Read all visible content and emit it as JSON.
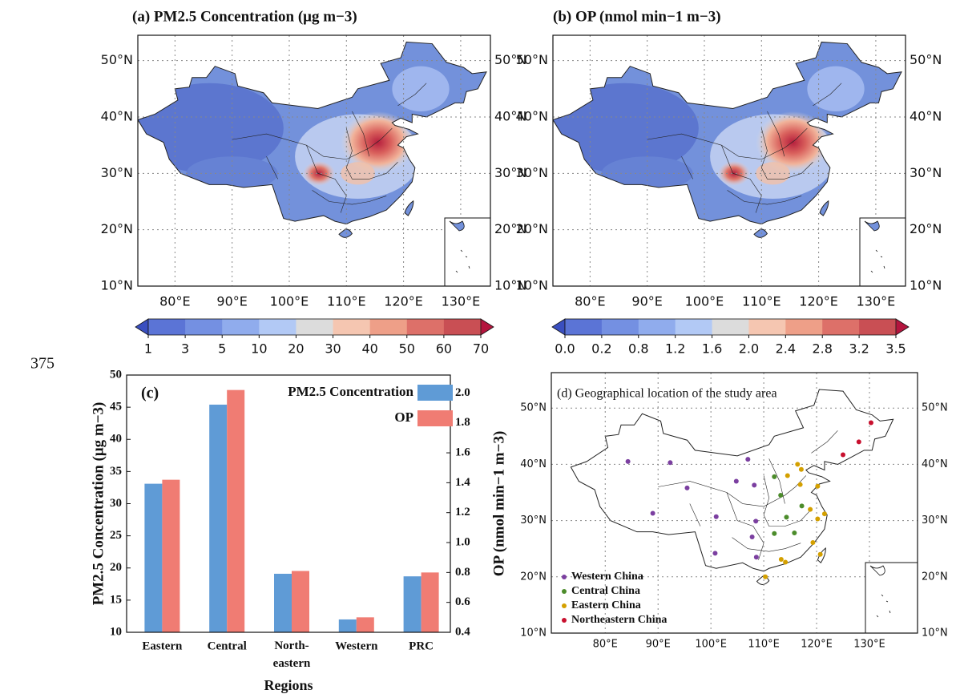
{
  "page_number": "375",
  "chart_data": [
    {
      "type": "map",
      "title": "(a) PM2.5 Concentration (μg m−3)",
      "xlim": [
        73.5,
        135.2
      ],
      "ylim": [
        10,
        54.5
      ],
      "xticks": [
        {
          "value": 80,
          "label": "80°E"
        },
        {
          "value": 90,
          "label": "90°E"
        },
        {
          "value": 100,
          "label": "100°E"
        },
        {
          "value": 110,
          "label": "110°E"
        },
        {
          "value": 120,
          "label": "120°E"
        },
        {
          "value": 130,
          "label": "130°E"
        }
      ],
      "yticks": [
        {
          "value": 10,
          "label": "10°N"
        },
        {
          "value": 20,
          "label": "20°N"
        },
        {
          "value": 30,
          "label": "30°N"
        },
        {
          "value": 40,
          "label": "40°N"
        },
        {
          "value": 50,
          "label": "50°N"
        }
      ],
      "grid": true,
      "colorbar": {
        "ticks": [
          1,
          3,
          5,
          10,
          20,
          30,
          40,
          50,
          60,
          70
        ],
        "colors": [
          "#5b74d6",
          "#7490e2",
          "#90aced",
          "#b2c9f5",
          "#dcdcdc",
          "#f5c6b1",
          "#ee9f88",
          "#dd7069",
          "#c94f54"
        ],
        "extend_colors": [
          "#3a4fc0",
          "#b4153e"
        ]
      }
    },
    {
      "type": "map",
      "title": "(b) OP (nmol min−1 m−3)",
      "xlim": [
        73.5,
        135.2
      ],
      "ylim": [
        10,
        54.5
      ],
      "xticks": [
        {
          "value": 80,
          "label": "80°E"
        },
        {
          "value": 90,
          "label": "90°E"
        },
        {
          "value": 100,
          "label": "100°E"
        },
        {
          "value": 110,
          "label": "110°E"
        },
        {
          "value": 120,
          "label": "120°E"
        },
        {
          "value": 130,
          "label": "130°E"
        }
      ],
      "yticks": [
        {
          "value": 10,
          "label": "10°N"
        },
        {
          "value": 20,
          "label": "20°N"
        },
        {
          "value": 30,
          "label": "30°N"
        },
        {
          "value": 40,
          "label": "40°N"
        },
        {
          "value": 50,
          "label": "50°N"
        }
      ],
      "grid": true,
      "colorbar": {
        "ticks": [
          {
            "value": 0,
            "label": "0.0"
          },
          0.2,
          0.8,
          1.2,
          1.6,
          {
            "value": 2,
            "label": "2.0"
          },
          2.4,
          2.8,
          3.2,
          3.5
        ],
        "colors": [
          "#5b74d6",
          "#7490e2",
          "#90aced",
          "#b2c9f5",
          "#dcdcdc",
          "#f5c6b1",
          "#ee9f88",
          "#dd7069",
          "#c94f54"
        ],
        "extend_colors": [
          "#3a4fc0",
          "#b4153e"
        ]
      }
    },
    {
      "type": "bar",
      "title": "(c)",
      "categories": [
        "Eastern",
        "Central",
        "North-eastern",
        "Western",
        "PRC"
      ],
      "series": [
        {
          "name": "PM2.5 Concentration",
          "color": "#5f9bd6",
          "values": [
            33.1,
            45.4,
            19.1,
            12.0,
            18.7
          ]
        },
        {
          "name": "OP",
          "color": "#f07c73",
          "axis": "y2",
          "values": [
            1.42,
            2.02,
            0.81,
            0.5,
            0.8
          ]
        }
      ],
      "xlabel": "Regions",
      "ylabel": "PM2.5 Concentration (μg m−3)",
      "y2label": "OP (nmol min−1 m−3)",
      "ylim": [
        10,
        50
      ],
      "yticks": [
        10,
        15,
        20,
        25,
        30,
        35,
        40,
        45,
        50
      ],
      "y2lim": [
        0.4,
        2.12
      ],
      "y2ticks": [
        0.4,
        0.6,
        0.8,
        {
          "value": 1,
          "label": "1.0"
        },
        1.2,
        1.4,
        1.6,
        1.8,
        {
          "value": 2,
          "label": "2.0"
        }
      ]
    },
    {
      "type": "map",
      "title": "(d) Geographical location of the study area",
      "xlim": [
        69.8,
        139.1
      ],
      "ylim": [
        10,
        56.3
      ],
      "xticks": [
        {
          "value": 80,
          "label": "80°E"
        },
        {
          "value": 90,
          "label": "90°E"
        },
        {
          "value": 100,
          "label": "100°E"
        },
        {
          "value": 110,
          "label": "110°E"
        },
        {
          "value": 120,
          "label": "120°E"
        },
        {
          "value": 130,
          "label": "130°E"
        }
      ],
      "yticks": [
        {
          "value": 10,
          "label": "10°N"
        },
        {
          "value": 20,
          "label": "20°N"
        },
        {
          "value": 30,
          "label": "30°N"
        },
        {
          "value": 40,
          "label": "40°N"
        },
        {
          "value": 50,
          "label": "50°N"
        }
      ],
      "grid": true,
      "legend": "lower left",
      "series": [
        {
          "name": "Western China",
          "color": "#7b3fa0",
          "x": [
            84.3,
            92.3,
            89.0,
            95.5,
            101.0,
            104.8,
            107.0,
            108.2,
            100.8,
            107.8,
            108.5,
            108.6
          ],
          "y": [
            40.5,
            40.3,
            31.3,
            35.8,
            30.7,
            37.0,
            40.9,
            36.3,
            24.2,
            27.1,
            29.9,
            23.5
          ]
        },
        {
          "name": "Central China",
          "color": "#4c8c2b",
          "x": [
            112.0,
            113.2,
            114.3,
            112.0,
            115.8,
            117.2
          ],
          "y": [
            37.8,
            34.5,
            30.6,
            27.7,
            27.8,
            32.6
          ]
        },
        {
          "name": "Eastern China",
          "color": "#d4a000",
          "x": [
            114.5,
            116.4,
            117.1,
            116.9,
            118.8,
            120.2,
            121.5,
            119.3,
            113.3,
            114.1,
            110.3,
            120.7,
            120.2
          ],
          "y": [
            38.0,
            40.0,
            39.1,
            36.4,
            32.0,
            30.3,
            31.2,
            26.1,
            23.1,
            22.6,
            20.0,
            24.0,
            36.1
          ]
        },
        {
          "name": "Northeastern China",
          "color": "#c8102e",
          "x": [
            125.0,
            128.0,
            130.3
          ],
          "y": [
            41.7,
            44.0,
            47.4
          ]
        }
      ]
    }
  ]
}
